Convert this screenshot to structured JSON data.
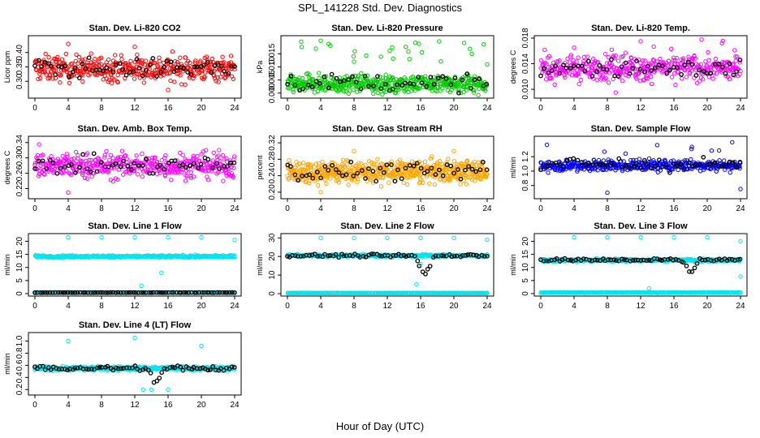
{
  "figure": {
    "title": "SPL_141228  Std. Dev. Diagnostics",
    "xlabel": "Hour of Day (UTC)"
  },
  "chart_data": [
    {
      "type": "scatter",
      "title": "Stan. Dev. Li-820 CO2",
      "ylabel": "Licor ppm",
      "color": "#ff0000",
      "xlim": [
        0,
        24
      ],
      "ylim": [
        0.25,
        0.45
      ],
      "xticks": [
        "0",
        "4",
        "8",
        "12",
        "16",
        "20",
        "24"
      ],
      "yticks": [
        {
          "v": 0.3,
          "t": "0.30"
        },
        {
          "v": 0.35,
          "t": "0.35"
        },
        {
          "v": 0.4,
          "t": "0.40"
        }
      ],
      "series": [
        {
          "role": "minute",
          "base": 0.345,
          "spread": 0.04,
          "n": 420,
          "outlier": 0,
          "outlierTop": 0.44
        },
        {
          "role": "hourly",
          "color": "#000000",
          "base": 0.345,
          "spread": 0.03,
          "n": 60,
          "dip": null
        }
      ],
      "highlight": [
        [
          4,
          0.43
        ],
        [
          12,
          0.42
        ],
        [
          16,
          0.27
        ]
      ]
    },
    {
      "type": "scatter",
      "title": "Stan. Dev. Li-820 Pressure",
      "ylabel": "kPa",
      "color": "#00cc00",
      "xlim": [
        0,
        24
      ],
      "ylim": [
        -0.001,
        0.021
      ],
      "xticks": [
        "0",
        "4",
        "8",
        "12",
        "16",
        "20",
        "24"
      ],
      "yticks": [
        {
          "v": 0.0,
          "t": "0.000"
        },
        {
          "v": 0.005,
          "t": "0.005"
        },
        {
          "v": 0.01,
          "t": "0.010"
        },
        {
          "v": 0.015,
          "t": "0.015"
        }
      ],
      "series": [
        {
          "role": "minute",
          "base": 0.0035,
          "spread": 0.003,
          "n": 520,
          "outlier": 18,
          "outlierTop": 0.02
        },
        {
          "role": "hourly",
          "color": "#000000",
          "base": 0.004,
          "spread": 0.003,
          "n": 50,
          "dip": null
        }
      ],
      "highlight": [
        [
          8,
          0.012
        ],
        [
          24,
          0.011
        ],
        [
          4,
          0.02
        ]
      ]
    },
    {
      "type": "scatter",
      "title": "Stan. Dev. Li-820 Temp.",
      "ylabel": "degrees C",
      "color": "#ff00ff",
      "xlim": [
        0,
        24
      ],
      "ylim": [
        0.009,
        0.018
      ],
      "xticks": [
        "0",
        "4",
        "8",
        "12",
        "16",
        "20",
        "24"
      ],
      "yticks": [
        {
          "v": 0.01,
          "t": "0.010"
        },
        {
          "v": 0.014,
          "t": "0.014"
        },
        {
          "v": 0.018,
          "t": "0.018"
        }
      ],
      "series": [
        {
          "role": "minute",
          "base": 0.0133,
          "spread": 0.0018,
          "n": 420,
          "outlier": 6,
          "outlierTop": 0.0178
        },
        {
          "role": "hourly",
          "color": "#000000",
          "base": 0.0133,
          "spread": 0.0012,
          "n": 55,
          "dip": null
        }
      ],
      "highlight": [
        [
          12,
          0.0175
        ],
        [
          4,
          0.0165
        ],
        [
          9,
          0.0095
        ]
      ]
    },
    {
      "type": "scatter",
      "title": "Stan. Dev. Amb. Box Temp.",
      "ylabel": "degrees C",
      "color": "#ff00ff",
      "xlim": [
        0,
        24
      ],
      "ylim": [
        0.2,
        0.35
      ],
      "xticks": [
        "0",
        "4",
        "8",
        "12",
        "16",
        "20",
        "24"
      ],
      "yticks": [
        {
          "v": 0.22,
          "t": "0.22"
        },
        {
          "v": 0.26,
          "t": "0.26"
        },
        {
          "v": 0.3,
          "t": "0.30"
        },
        {
          "v": 0.34,
          "t": "0.34"
        }
      ],
      "series": [
        {
          "role": "minute",
          "base": 0.28,
          "spread": 0.03,
          "n": 420,
          "outlier": 0,
          "outlierTop": 0.34
        },
        {
          "role": "hourly",
          "color": "#000000",
          "base": 0.28,
          "spread": 0.02,
          "n": 55,
          "dip": null
        }
      ],
      "highlight": [
        [
          0.5,
          0.335
        ],
        [
          20,
          0.31
        ],
        [
          4,
          0.21
        ]
      ]
    },
    {
      "type": "scatter",
      "title": "Stan. Dev. Gas Stream RH",
      "ylabel": "percent",
      "color": "#ffa500",
      "xlim": [
        0,
        24
      ],
      "ylim": [
        0.19,
        0.33
      ],
      "xticks": [
        "0",
        "4",
        "8",
        "12",
        "16",
        "20",
        "24"
      ],
      "yticks": [
        {
          "v": 0.2,
          "t": "0.20"
        },
        {
          "v": 0.24,
          "t": "0.24"
        },
        {
          "v": 0.28,
          "t": "0.28"
        },
        {
          "v": 0.32,
          "t": "0.32"
        }
      ],
      "series": [
        {
          "role": "minute",
          "base": 0.25,
          "spread": 0.025,
          "n": 560,
          "outlier": 0,
          "outlierTop": 0.32
        },
        {
          "role": "hourly",
          "color": "#000000",
          "base": 0.25,
          "spread": 0.02,
          "n": 55,
          "dip": null
        }
      ],
      "highlight": [
        [
          8,
          0.3
        ],
        [
          20,
          0.3
        ],
        [
          4,
          0.2
        ]
      ]
    },
    {
      "type": "scatter",
      "title": "Stan. Dev. Sample Flow",
      "ylabel": "ml/min",
      "color": "#0000ff",
      "xlim": [
        0,
        24
      ],
      "ylim": [
        0.65,
        1.45
      ],
      "xticks": [
        "0",
        "4",
        "8",
        "12",
        "16",
        "20",
        "24"
      ],
      "yticks": [
        {
          "v": 0.8,
          "t": "0.8"
        },
        {
          "v": 1.0,
          "t": "1.0"
        },
        {
          "v": 1.2,
          "t": "1.2"
        }
      ],
      "series": [
        {
          "role": "minute",
          "base": 1.08,
          "spread": 0.07,
          "n": 420,
          "outlier": 10,
          "outlierTop": 1.4
        },
        {
          "role": "hourly",
          "color": "#000000",
          "base": 1.09,
          "spread": 0.09,
          "n": 55,
          "dip": null
        }
      ],
      "highlight": [
        [
          8,
          0.7
        ],
        [
          24,
          0.75
        ],
        [
          23,
          1.4
        ]
      ]
    },
    {
      "type": "scatter",
      "title": "Stan. Dev. Line 1 Flow",
      "ylabel": "ml/min",
      "color": "#00e5ee",
      "xlim": [
        0,
        24
      ],
      "ylim": [
        0,
        22
      ],
      "xticks": [
        "0",
        "4",
        "8",
        "12",
        "16",
        "20",
        "24"
      ],
      "yticks": [
        {
          "v": 0,
          "t": "0"
        },
        {
          "v": 5,
          "t": "5"
        },
        {
          "v": 10,
          "t": "10"
        },
        {
          "v": 15,
          "t": "15"
        },
        {
          "v": 20,
          "t": "20"
        }
      ],
      "series": [
        {
          "role": "minute",
          "base": 14.2,
          "spread": 0.4,
          "n": 380,
          "outlier": 0,
          "outlierTop": 21.5
        },
        {
          "role": "baseline",
          "color": "#00e5ee",
          "base": 0.4,
          "spread": 0.1,
          "n": 320
        },
        {
          "role": "hourly",
          "color": "#000000",
          "base": 0.4,
          "spread": 0.05,
          "n": 80,
          "dip": null
        }
      ],
      "highlight": [
        [
          4,
          21.5
        ],
        [
          8,
          21.5
        ],
        [
          12,
          21.5
        ],
        [
          16,
          21.5
        ],
        [
          20,
          21.5
        ],
        [
          24,
          20.5
        ],
        [
          12.8,
          3
        ],
        [
          15.2,
          8
        ]
      ]
    },
    {
      "type": "scatter",
      "title": "Stan. Dev. Line 2 Flow",
      "ylabel": "ml/min",
      "color": "#00e5ee",
      "xlim": [
        0,
        24
      ],
      "ylim": [
        0,
        31
      ],
      "xticks": [
        "0",
        "4",
        "8",
        "12",
        "16",
        "20",
        "24"
      ],
      "yticks": [
        {
          "v": 0,
          "t": "0"
        },
        {
          "v": 10,
          "t": "10"
        },
        {
          "v": 20,
          "t": "20"
        },
        {
          "v": 30,
          "t": "30"
        }
      ],
      "series": [
        {
          "role": "minute",
          "base": 20.5,
          "spread": 0.6,
          "n": 380,
          "outlier": 0,
          "outlierTop": 30
        },
        {
          "role": "baseline",
          "color": "#00e5ee",
          "base": 0.3,
          "spread": 0.1,
          "n": 320
        },
        {
          "role": "hourly",
          "color": "#000000",
          "base": 20.5,
          "spread": 0.8,
          "n": 75,
          "dip": [
            16.5,
            9
          ]
        }
      ],
      "highlight": [
        [
          4,
          30
        ],
        [
          8,
          30
        ],
        [
          12,
          30
        ],
        [
          16,
          30
        ],
        [
          20,
          30
        ],
        [
          24,
          29
        ],
        [
          15.5,
          5
        ],
        [
          16,
          16
        ]
      ]
    },
    {
      "type": "scatter",
      "title": "Stan. Dev. Line 3 Flow",
      "ylabel": "ml/min",
      "color": "#00e5ee",
      "xlim": [
        0,
        24
      ],
      "ylim": [
        0,
        22
      ],
      "xticks": [
        "0",
        "4",
        "8",
        "12",
        "16",
        "20",
        "24"
      ],
      "yticks": [
        {
          "v": 0,
          "t": "0"
        },
        {
          "v": 5,
          "t": "5"
        },
        {
          "v": 10,
          "t": "10"
        },
        {
          "v": 15,
          "t": "15"
        },
        {
          "v": 20,
          "t": "20"
        }
      ],
      "series": [
        {
          "role": "minute",
          "base": 12.8,
          "spread": 0.5,
          "n": 380,
          "outlier": 0,
          "outlierTop": 21.5
        },
        {
          "role": "baseline",
          "color": "#00e5ee",
          "base": 0.4,
          "spread": 0.1,
          "n": 320
        },
        {
          "role": "hourly",
          "color": "#000000",
          "base": 12.8,
          "spread": 0.6,
          "n": 75,
          "dip": [
            18,
            8
          ]
        }
      ],
      "highlight": [
        [
          4,
          21.5
        ],
        [
          8,
          21.5
        ],
        [
          12,
          21.5
        ],
        [
          16,
          21.5
        ],
        [
          20,
          21.5
        ],
        [
          24,
          20
        ],
        [
          13,
          2
        ],
        [
          24,
          6.5
        ]
      ]
    },
    {
      "type": "scatter",
      "title": "Stan. Dev. Line 4 (LT) Flow",
      "ylabel": "ml/min",
      "color": "#00e5ee",
      "xlim": [
        0,
        24
      ],
      "ylim": [
        0.15,
        1.1
      ],
      "xticks": [
        "0",
        "4",
        "8",
        "12",
        "16",
        "20",
        "24"
      ],
      "yticks": [
        {
          "v": 0.2,
          "t": "0.2"
        },
        {
          "v": 0.4,
          "t": "0.4"
        },
        {
          "v": 0.6,
          "t": "0.6"
        },
        {
          "v": 0.8,
          "t": "0.8"
        },
        {
          "v": 1.0,
          "t": "1.0"
        }
      ],
      "series": [
        {
          "role": "minute",
          "base": 0.55,
          "spread": 0.03,
          "n": 380,
          "outlier": 0,
          "outlierTop": 1.0
        },
        {
          "role": "hourly",
          "color": "#000000",
          "base": 0.55,
          "spread": 0.04,
          "n": 75,
          "dip": [
            14.5,
            0.3
          ]
        }
      ],
      "highlight": [
        [
          4,
          1.0
        ],
        [
          12,
          1.05
        ],
        [
          20,
          0.92
        ],
        [
          13,
          0.2
        ],
        [
          14,
          0.2
        ],
        [
          16,
          0.2
        ]
      ]
    }
  ]
}
